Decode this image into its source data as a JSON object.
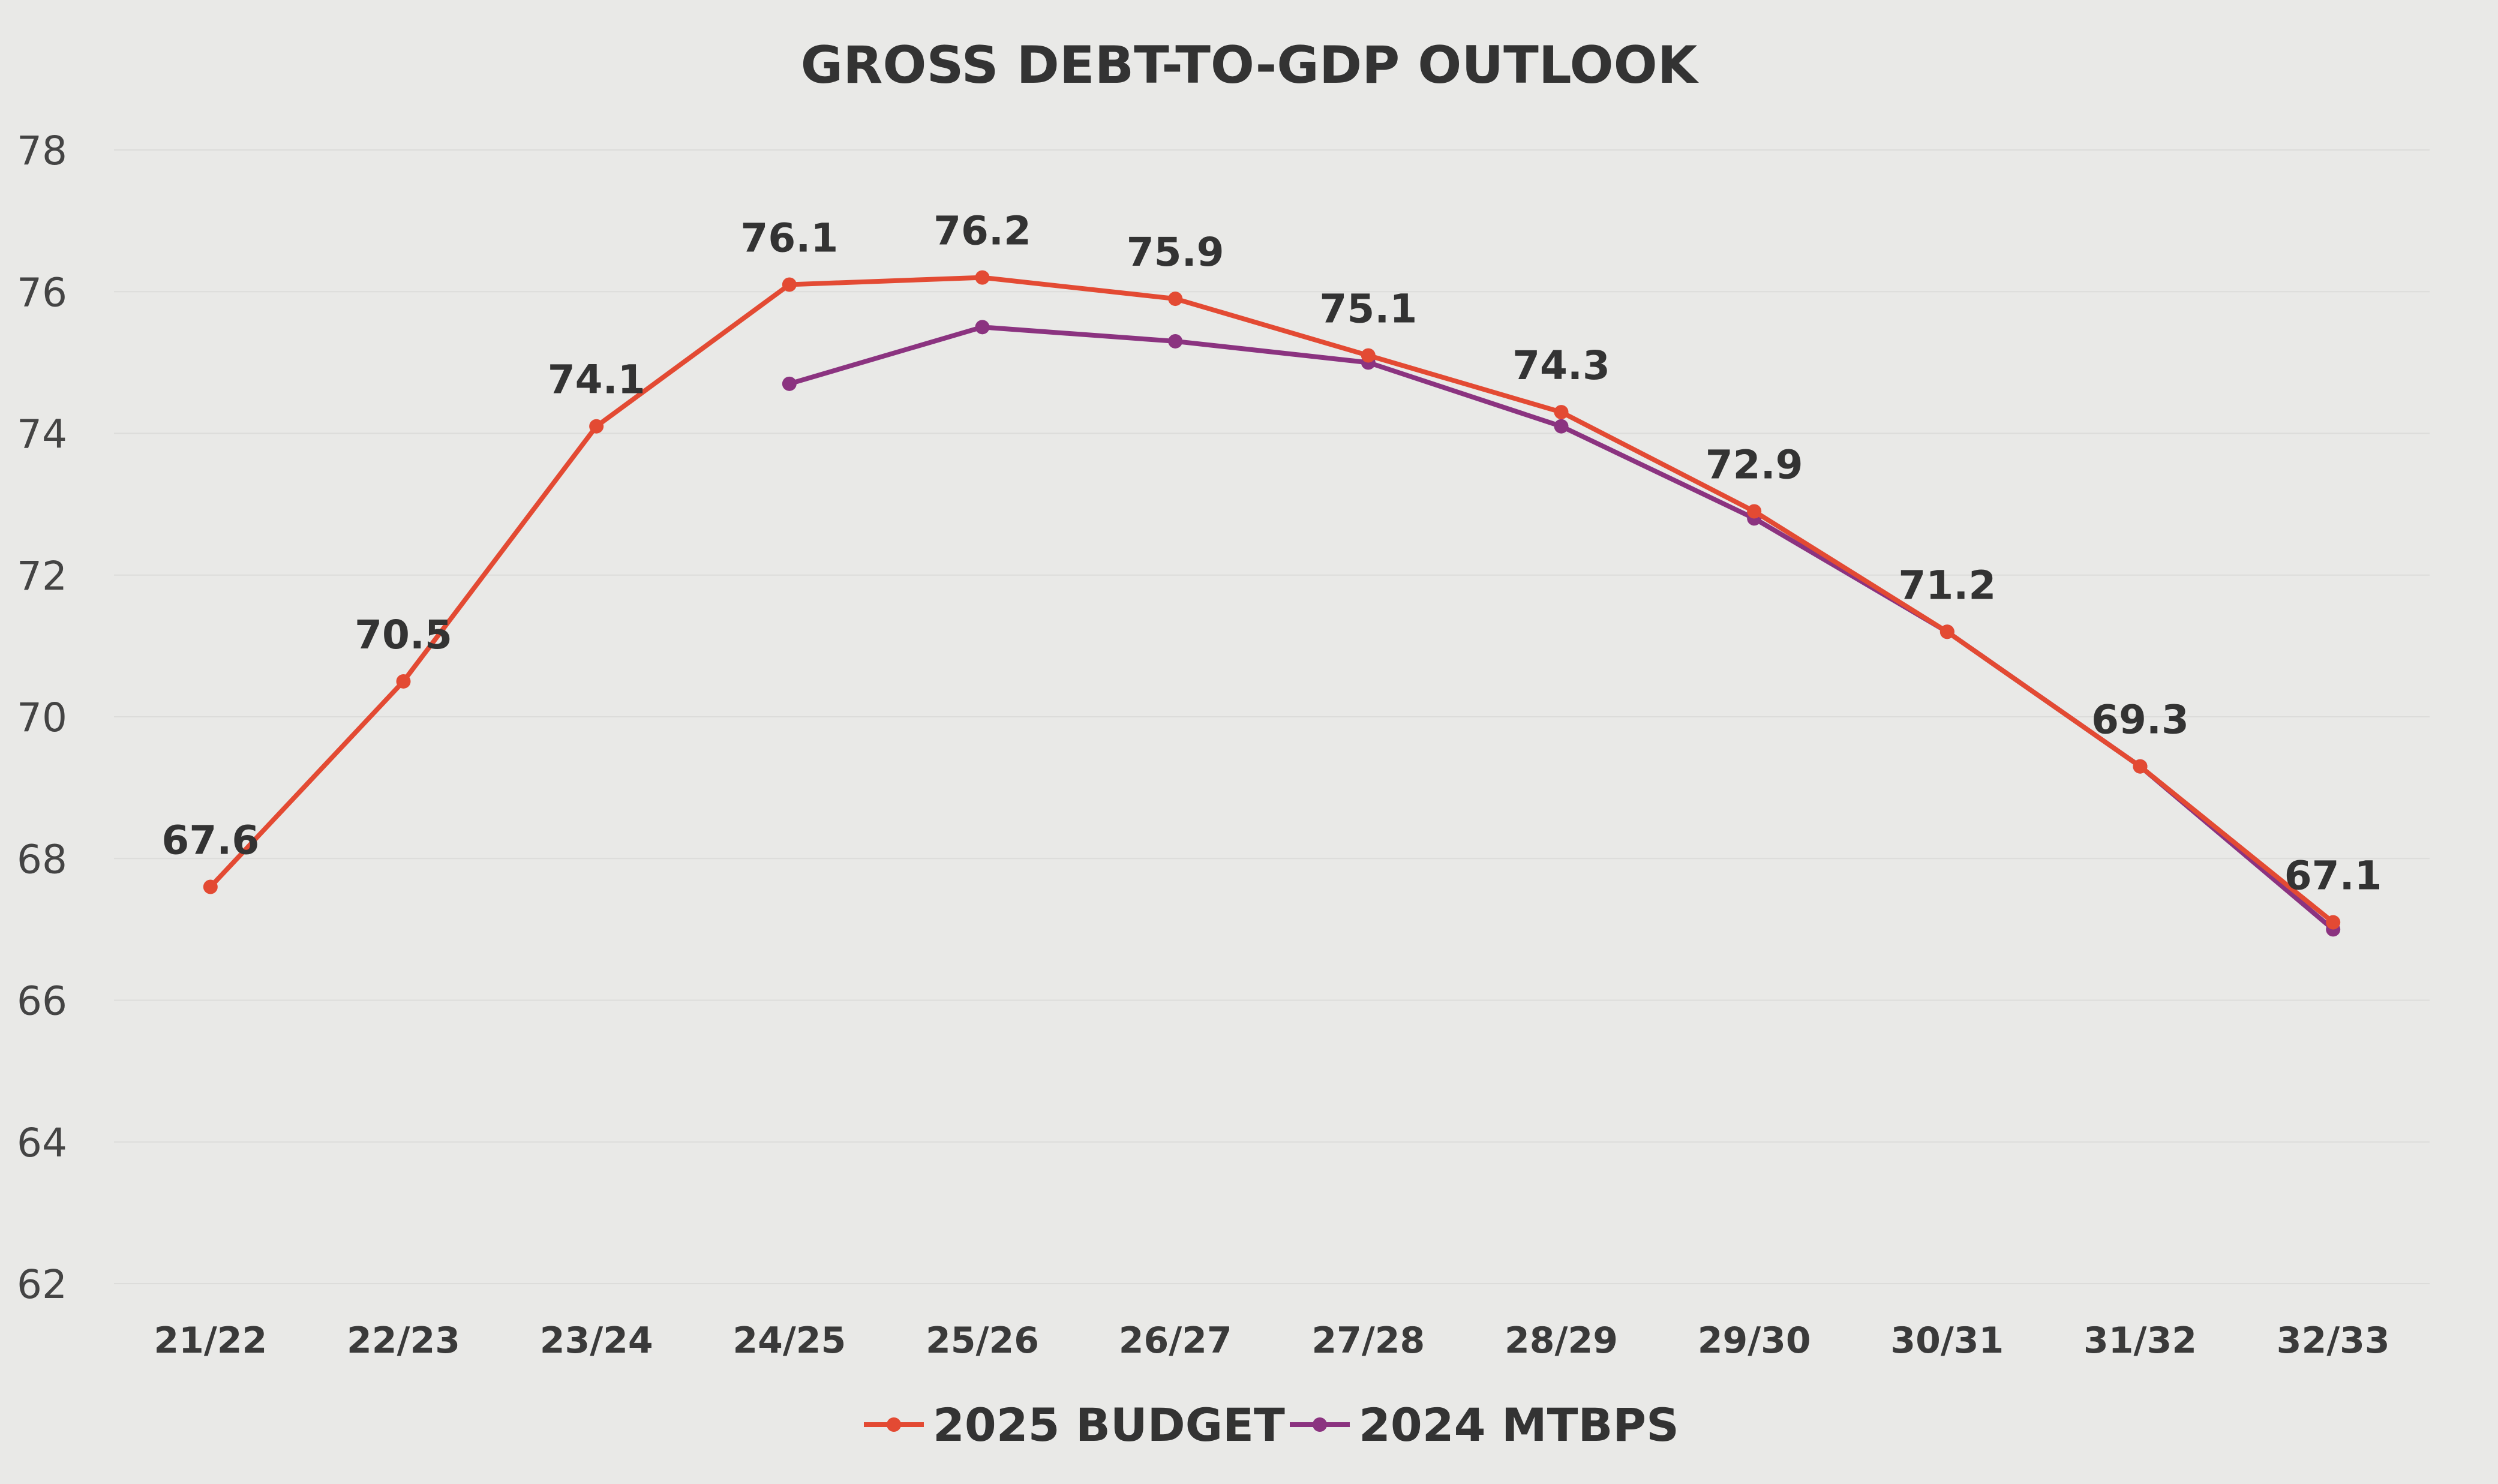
{
  "chart_data": {
    "type": "line",
    "title": "GROSS DEBT-TO-GDP OUTLOOK",
    "categories": [
      "21/22",
      "22/23",
      "23/24",
      "24/25",
      "25/26",
      "26/27",
      "27/28",
      "28/29",
      "29/30",
      "30/31",
      "31/32",
      "32/33"
    ],
    "ylim": [
      62,
      78
    ],
    "yticks": [
      62,
      64,
      66,
      68,
      70,
      72,
      74,
      76,
      78
    ],
    "grid": true,
    "legend_position": "bottom",
    "series": [
      {
        "name": "2025 BUDGET",
        "color": "#e34a33",
        "values": [
          67.6,
          70.5,
          74.1,
          76.1,
          76.2,
          75.9,
          75.1,
          74.3,
          72.9,
          71.2,
          69.3,
          67.1
        ],
        "data_labels": [
          "67.6",
          "70.5",
          "74.1",
          "76.1",
          "76.2",
          "75.9",
          "75.1",
          "74.3",
          "72.9",
          "71.2",
          "69.3",
          "67.1"
        ]
      },
      {
        "name": "2024 MTBPS",
        "color": "#8b3380",
        "values": [
          null,
          null,
          null,
          74.7,
          75.5,
          75.3,
          75.0,
          74.1,
          72.8,
          71.2,
          69.3,
          67.0
        ]
      }
    ]
  }
}
